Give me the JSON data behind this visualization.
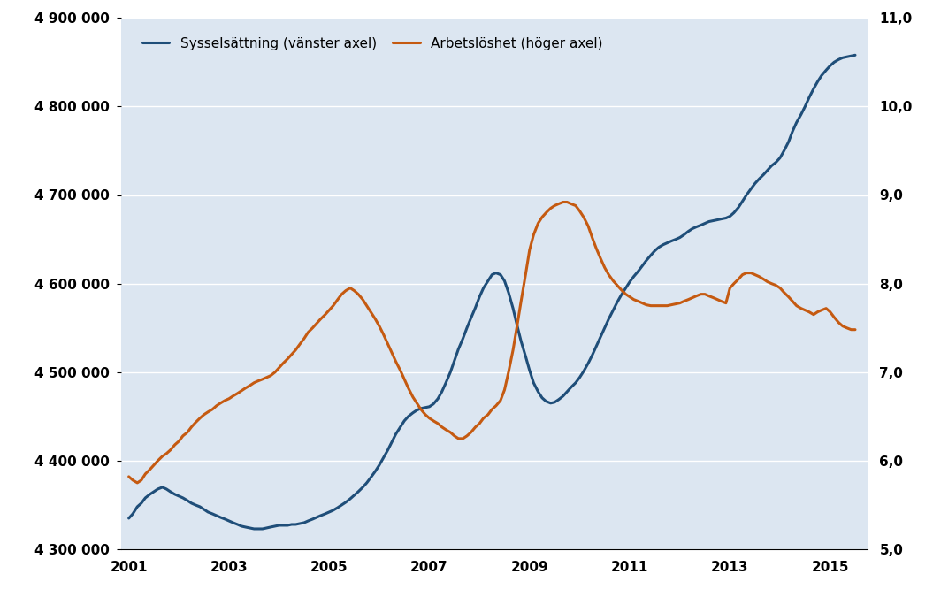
{
  "background_color": "#dce6f1",
  "plot_bg_color": "#dce6f1",
  "outer_bg_color": "#ffffff",
  "line1_color": "#1f4e79",
  "line2_color": "#c55a11",
  "legend_label1": "Sysselsättning (vänster axel)",
  "legend_label2": "Arbetslöshet (höger axel)",
  "left_ylim": [
    4300000,
    4900000
  ],
  "right_ylim": [
    5.0,
    11.0
  ],
  "left_yticks": [
    4300000,
    4400000,
    4500000,
    4600000,
    4700000,
    4800000,
    4900000
  ],
  "right_yticks": [
    5.0,
    6.0,
    7.0,
    8.0,
    9.0,
    10.0,
    11.0
  ],
  "xticks": [
    2001,
    2003,
    2005,
    2007,
    2009,
    2011,
    2013,
    2015
  ],
  "xlim": [
    2000.85,
    2015.75
  ],
  "sysselsattning_x": [
    2001.0,
    2001.08,
    2001.17,
    2001.25,
    2001.33,
    2001.42,
    2001.5,
    2001.58,
    2001.67,
    2001.75,
    2001.83,
    2001.92,
    2002.0,
    2002.08,
    2002.17,
    2002.25,
    2002.33,
    2002.42,
    2002.5,
    2002.58,
    2002.67,
    2002.75,
    2002.83,
    2002.92,
    2003.0,
    2003.08,
    2003.17,
    2003.25,
    2003.33,
    2003.42,
    2003.5,
    2003.58,
    2003.67,
    2003.75,
    2003.83,
    2003.92,
    2004.0,
    2004.08,
    2004.17,
    2004.25,
    2004.33,
    2004.42,
    2004.5,
    2004.58,
    2004.67,
    2004.75,
    2004.83,
    2004.92,
    2005.0,
    2005.08,
    2005.17,
    2005.25,
    2005.33,
    2005.42,
    2005.5,
    2005.58,
    2005.67,
    2005.75,
    2005.83,
    2005.92,
    2006.0,
    2006.08,
    2006.17,
    2006.25,
    2006.33,
    2006.42,
    2006.5,
    2006.58,
    2006.67,
    2006.75,
    2006.83,
    2006.92,
    2007.0,
    2007.08,
    2007.17,
    2007.25,
    2007.33,
    2007.42,
    2007.5,
    2007.58,
    2007.67,
    2007.75,
    2007.83,
    2007.92,
    2008.0,
    2008.08,
    2008.17,
    2008.25,
    2008.33,
    2008.42,
    2008.5,
    2008.58,
    2008.67,
    2008.75,
    2008.83,
    2008.92,
    2009.0,
    2009.08,
    2009.17,
    2009.25,
    2009.33,
    2009.42,
    2009.5,
    2009.58,
    2009.67,
    2009.75,
    2009.83,
    2009.92,
    2010.0,
    2010.08,
    2010.17,
    2010.25,
    2010.33,
    2010.42,
    2010.5,
    2010.58,
    2010.67,
    2010.75,
    2010.83,
    2010.92,
    2011.0,
    2011.08,
    2011.17,
    2011.25,
    2011.33,
    2011.42,
    2011.5,
    2011.58,
    2011.67,
    2011.75,
    2011.83,
    2011.92,
    2012.0,
    2012.08,
    2012.17,
    2012.25,
    2012.33,
    2012.42,
    2012.5,
    2012.58,
    2012.67,
    2012.75,
    2012.83,
    2012.92,
    2013.0,
    2013.08,
    2013.17,
    2013.25,
    2013.33,
    2013.42,
    2013.5,
    2013.58,
    2013.67,
    2013.75,
    2013.83,
    2013.92,
    2014.0,
    2014.08,
    2014.17,
    2014.25,
    2014.33,
    2014.42,
    2014.5,
    2014.58,
    2014.67,
    2014.75,
    2014.83,
    2014.92,
    2015.0,
    2015.08,
    2015.17,
    2015.25,
    2015.33,
    2015.42,
    2015.5
  ],
  "sysselsattning_y": [
    4335000,
    4340000,
    4348000,
    4352000,
    4358000,
    4362000,
    4365000,
    4368000,
    4370000,
    4368000,
    4365000,
    4362000,
    4360000,
    4358000,
    4355000,
    4352000,
    4350000,
    4348000,
    4345000,
    4342000,
    4340000,
    4338000,
    4336000,
    4334000,
    4332000,
    4330000,
    4328000,
    4326000,
    4325000,
    4324000,
    4323000,
    4323000,
    4323000,
    4324000,
    4325000,
    4326000,
    4327000,
    4327000,
    4327000,
    4328000,
    4328000,
    4329000,
    4330000,
    4332000,
    4334000,
    4336000,
    4338000,
    4340000,
    4342000,
    4344000,
    4347000,
    4350000,
    4353000,
    4357000,
    4361000,
    4365000,
    4370000,
    4375000,
    4381000,
    4388000,
    4395000,
    4403000,
    4412000,
    4421000,
    4430000,
    4438000,
    4445000,
    4450000,
    4454000,
    4457000,
    4459000,
    4460000,
    4461000,
    4464000,
    4470000,
    4478000,
    4488000,
    4500000,
    4513000,
    4526000,
    4538000,
    4550000,
    4561000,
    4573000,
    4585000,
    4595000,
    4603000,
    4610000,
    4612000,
    4610000,
    4603000,
    4590000,
    4572000,
    4553000,
    4535000,
    4518000,
    4502000,
    4488000,
    4478000,
    4471000,
    4467000,
    4465000,
    4466000,
    4469000,
    4473000,
    4478000,
    4483000,
    4488000,
    4494000,
    4501000,
    4510000,
    4519000,
    4529000,
    4540000,
    4550000,
    4560000,
    4570000,
    4579000,
    4587000,
    4595000,
    4602000,
    4608000,
    4614000,
    4620000,
    4626000,
    4632000,
    4637000,
    4641000,
    4644000,
    4646000,
    4648000,
    4650000,
    4652000,
    4655000,
    4659000,
    4662000,
    4664000,
    4666000,
    4668000,
    4670000,
    4671000,
    4672000,
    4673000,
    4674000,
    4676000,
    4680000,
    4686000,
    4693000,
    4700000,
    4707000,
    4713000,
    4718000,
    4723000,
    4728000,
    4733000,
    4737000,
    4742000,
    4750000,
    4760000,
    4772000,
    4782000,
    4791000,
    4800000,
    4810000,
    4820000,
    4828000,
    4835000,
    4841000,
    4846000,
    4850000,
    4853000,
    4855000,
    4856000,
    4857000,
    4858000
  ],
  "arbetsloshet_x": [
    2001.0,
    2001.08,
    2001.17,
    2001.25,
    2001.33,
    2001.42,
    2001.5,
    2001.58,
    2001.67,
    2001.75,
    2001.83,
    2001.92,
    2002.0,
    2002.08,
    2002.17,
    2002.25,
    2002.33,
    2002.42,
    2002.5,
    2002.58,
    2002.67,
    2002.75,
    2002.83,
    2002.92,
    2003.0,
    2003.08,
    2003.17,
    2003.25,
    2003.33,
    2003.42,
    2003.5,
    2003.58,
    2003.67,
    2003.75,
    2003.83,
    2003.92,
    2004.0,
    2004.08,
    2004.17,
    2004.25,
    2004.33,
    2004.42,
    2004.5,
    2004.58,
    2004.67,
    2004.75,
    2004.83,
    2004.92,
    2005.0,
    2005.08,
    2005.17,
    2005.25,
    2005.33,
    2005.42,
    2005.5,
    2005.58,
    2005.67,
    2005.75,
    2005.83,
    2005.92,
    2006.0,
    2006.08,
    2006.17,
    2006.25,
    2006.33,
    2006.42,
    2006.5,
    2006.58,
    2006.67,
    2006.75,
    2006.83,
    2006.92,
    2007.0,
    2007.08,
    2007.17,
    2007.25,
    2007.33,
    2007.42,
    2007.5,
    2007.58,
    2007.67,
    2007.75,
    2007.83,
    2007.92,
    2008.0,
    2008.08,
    2008.17,
    2008.25,
    2008.33,
    2008.42,
    2008.5,
    2008.58,
    2008.67,
    2008.75,
    2008.83,
    2008.92,
    2009.0,
    2009.08,
    2009.17,
    2009.25,
    2009.33,
    2009.42,
    2009.5,
    2009.58,
    2009.67,
    2009.75,
    2009.83,
    2009.92,
    2010.0,
    2010.08,
    2010.17,
    2010.25,
    2010.33,
    2010.42,
    2010.5,
    2010.58,
    2010.67,
    2010.75,
    2010.83,
    2010.92,
    2011.0,
    2011.08,
    2011.17,
    2011.25,
    2011.33,
    2011.42,
    2011.5,
    2011.58,
    2011.67,
    2011.75,
    2011.83,
    2011.92,
    2012.0,
    2012.08,
    2012.17,
    2012.25,
    2012.33,
    2012.42,
    2012.5,
    2012.58,
    2012.67,
    2012.75,
    2012.83,
    2012.92,
    2013.0,
    2013.08,
    2013.17,
    2013.25,
    2013.33,
    2013.42,
    2013.5,
    2013.58,
    2013.67,
    2013.75,
    2013.83,
    2013.92,
    2014.0,
    2014.08,
    2014.17,
    2014.25,
    2014.33,
    2014.42,
    2014.5,
    2014.58,
    2014.67,
    2014.75,
    2014.83,
    2014.92,
    2015.0,
    2015.08,
    2015.17,
    2015.25,
    2015.33,
    2015.42,
    2015.5
  ],
  "arbetsloshet_y": [
    5.82,
    5.78,
    5.75,
    5.78,
    5.85,
    5.9,
    5.95,
    6.0,
    6.05,
    6.08,
    6.12,
    6.18,
    6.22,
    6.28,
    6.32,
    6.38,
    6.43,
    6.48,
    6.52,
    6.55,
    6.58,
    6.62,
    6.65,
    6.68,
    6.7,
    6.73,
    6.76,
    6.79,
    6.82,
    6.85,
    6.88,
    6.9,
    6.92,
    6.94,
    6.96,
    7.0,
    7.05,
    7.1,
    7.15,
    7.2,
    7.25,
    7.32,
    7.38,
    7.45,
    7.5,
    7.55,
    7.6,
    7.65,
    7.7,
    7.75,
    7.82,
    7.88,
    7.92,
    7.95,
    7.92,
    7.88,
    7.82,
    7.75,
    7.68,
    7.6,
    7.52,
    7.43,
    7.32,
    7.22,
    7.12,
    7.02,
    6.92,
    6.82,
    6.72,
    6.65,
    6.58,
    6.52,
    6.48,
    6.45,
    6.42,
    6.38,
    6.35,
    6.32,
    6.28,
    6.25,
    6.25,
    6.28,
    6.32,
    6.38,
    6.42,
    6.48,
    6.52,
    6.58,
    6.62,
    6.68,
    6.8,
    7.0,
    7.25,
    7.52,
    7.8,
    8.1,
    8.38,
    8.55,
    8.68,
    8.75,
    8.8,
    8.85,
    8.88,
    8.9,
    8.92,
    8.92,
    8.9,
    8.88,
    8.82,
    8.75,
    8.65,
    8.52,
    8.4,
    8.28,
    8.18,
    8.1,
    8.03,
    7.98,
    7.93,
    7.88,
    7.85,
    7.82,
    7.8,
    7.78,
    7.76,
    7.75,
    7.75,
    7.75,
    7.75,
    7.75,
    7.76,
    7.77,
    7.78,
    7.8,
    7.82,
    7.84,
    7.86,
    7.88,
    7.88,
    7.86,
    7.84,
    7.82,
    7.8,
    7.78,
    7.95,
    8.0,
    8.05,
    8.1,
    8.12,
    8.12,
    8.1,
    8.08,
    8.05,
    8.02,
    8.0,
    7.98,
    7.95,
    7.9,
    7.85,
    7.8,
    7.75,
    7.72,
    7.7,
    7.68,
    7.65,
    7.68,
    7.7,
    7.72,
    7.68,
    7.62,
    7.56,
    7.52,
    7.5,
    7.48,
    7.48
  ],
  "line_width": 2.2,
  "font_size": 11,
  "font_family": "Arial",
  "grid_color": "#ffffff",
  "grid_linewidth": 1.0
}
